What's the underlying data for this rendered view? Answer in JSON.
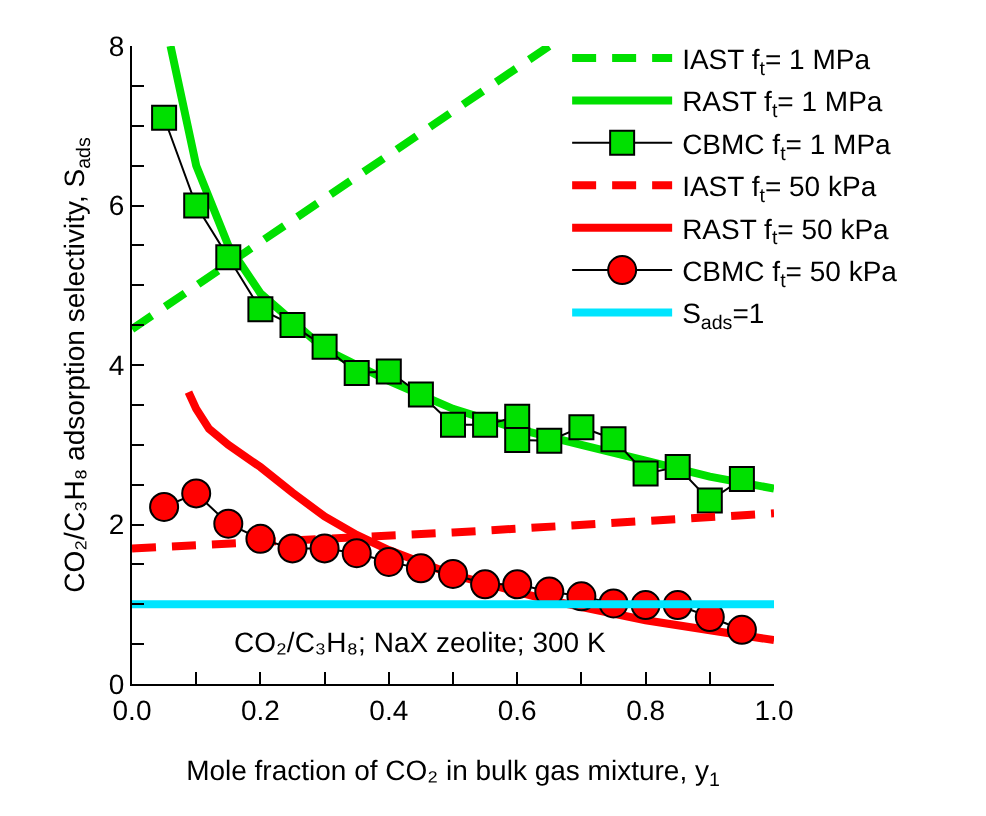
{
  "chart_data": {
    "type": "line",
    "xlabel": "Mole fraction of CO₂ in bulk gas mixture, y$_{1}$",
    "ylabel": "CO₂/C₃H₈ adsorption selectivity, S$_{ads}$",
    "annotations": [
      "CO₂/C₃H₈; NaX zeolite; 300 K"
    ],
    "xlim": [
      0,
      1
    ],
    "ylim": [
      0,
      8
    ],
    "xticks": [
      {
        "value": 0,
        "label": "0.0"
      },
      {
        "value": 0.1,
        "label": null
      },
      {
        "value": 0.2,
        "label": "0.2"
      },
      {
        "value": 0.3,
        "label": null
      },
      {
        "value": 0.4,
        "label": "0.4"
      },
      {
        "value": 0.5,
        "label": null
      },
      {
        "value": 0.6,
        "label": "0.6"
      },
      {
        "value": 0.7,
        "label": null
      },
      {
        "value": 0.8,
        "label": "0.8"
      },
      {
        "value": 0.9,
        "label": null
      },
      {
        "value": 1,
        "label": "1.0"
      }
    ],
    "yticks": [
      0,
      {
        "value": 0.5,
        "label": null
      },
      {
        "value": 1,
        "label": null
      },
      {
        "value": 1.5,
        "label": null
      },
      2,
      {
        "value": 2.5,
        "label": null
      },
      {
        "value": 3,
        "label": null
      },
      {
        "value": 3.5,
        "label": null
      },
      4,
      {
        "value": 4.5,
        "label": null
      },
      {
        "value": 5,
        "label": null
      },
      {
        "value": 5.5,
        "label": null
      },
      6,
      {
        "value": 6.5,
        "label": null
      },
      {
        "value": 7,
        "label": null
      },
      {
        "value": 7.5,
        "label": null
      },
      8
    ],
    "legend": "top right",
    "series": [
      {
        "name": "IAST f$_{t}$= 1 MPa",
        "color": "#00e000",
        "line_style": "dashed",
        "marker": "none",
        "x": [
          0,
          0.65
        ],
        "values": [
          4.45,
          8.0
        ]
      },
      {
        "name": "RAST f$_{t}$= 1 MPa",
        "color": "#00e000",
        "line_style": "solid",
        "marker": "none",
        "x": [
          0.06,
          0.1,
          0.15,
          0.2,
          0.3,
          0.4,
          0.5,
          0.6,
          0.7,
          0.8,
          0.9,
          1.0
        ],
        "values": [
          8.0,
          6.5,
          5.5,
          4.9,
          4.2,
          3.8,
          3.45,
          3.2,
          3.0,
          2.8,
          2.6,
          2.45
        ]
      },
      {
        "name": "CBMC f$_{t}$= 1 MPa",
        "color": "#00e000",
        "line_style": "solid",
        "marker": "square",
        "x": [
          0.05,
          0.1,
          0.15,
          0.2,
          0.25,
          0.3,
          0.35,
          0.4,
          0.45,
          0.5,
          0.55,
          0.6,
          0.6,
          0.65,
          0.7,
          0.75,
          0.8,
          0.85,
          0.9,
          0.95
        ],
        "values": [
          7.1,
          6.0,
          5.35,
          4.7,
          4.5,
          4.23,
          3.9,
          3.92,
          3.63,
          3.25,
          3.25,
          3.35,
          3.06,
          3.05,
          3.22,
          3.07,
          2.64,
          2.72,
          2.3,
          2.57
        ]
      },
      {
        "name": "IAST f$_{t}$= 50 kPa",
        "color": "#ff0000",
        "line_style": "dashed",
        "marker": "none",
        "x": [
          0,
          0.5,
          1.0
        ],
        "values": [
          1.7,
          1.9,
          2.14
        ]
      },
      {
        "name": "RAST f$_{t}$= 50 kPa",
        "color": "#ff0000",
        "line_style": "solid",
        "marker": "none",
        "x": [
          0.088,
          0.1,
          0.12,
          0.15,
          0.2,
          0.25,
          0.3,
          0.35,
          0.4,
          0.5,
          0.65,
          0.8,
          1.0
        ],
        "values": [
          3.66,
          3.45,
          3.2,
          3.0,
          2.72,
          2.4,
          2.1,
          1.87,
          1.68,
          1.37,
          1.05,
          0.8,
          0.55
        ]
      },
      {
        "name": "CBMC f$_{t}$= 50 kPa",
        "color": "#ff0000",
        "line_style": "solid",
        "marker": "circle",
        "x": [
          0.05,
          0.1,
          0.15,
          0.2,
          0.25,
          0.3,
          0.35,
          0.4,
          0.45,
          0.5,
          0.55,
          0.6,
          0.65,
          0.7,
          0.75,
          0.8,
          0.85,
          0.9,
          0.95
        ],
        "values": [
          2.22,
          2.39,
          2.01,
          1.82,
          1.7,
          1.7,
          1.64,
          1.53,
          1.45,
          1.38,
          1.25,
          1.25,
          1.16,
          1.1,
          1.01,
          0.99,
          0.99,
          0.84,
          0.68
        ]
      },
      {
        "name": "S$_{ads}$=1",
        "color": "#00e5ff",
        "line_style": "solid",
        "marker": "none",
        "x": [
          0,
          1.0
        ],
        "values": [
          1,
          1
        ]
      }
    ]
  }
}
